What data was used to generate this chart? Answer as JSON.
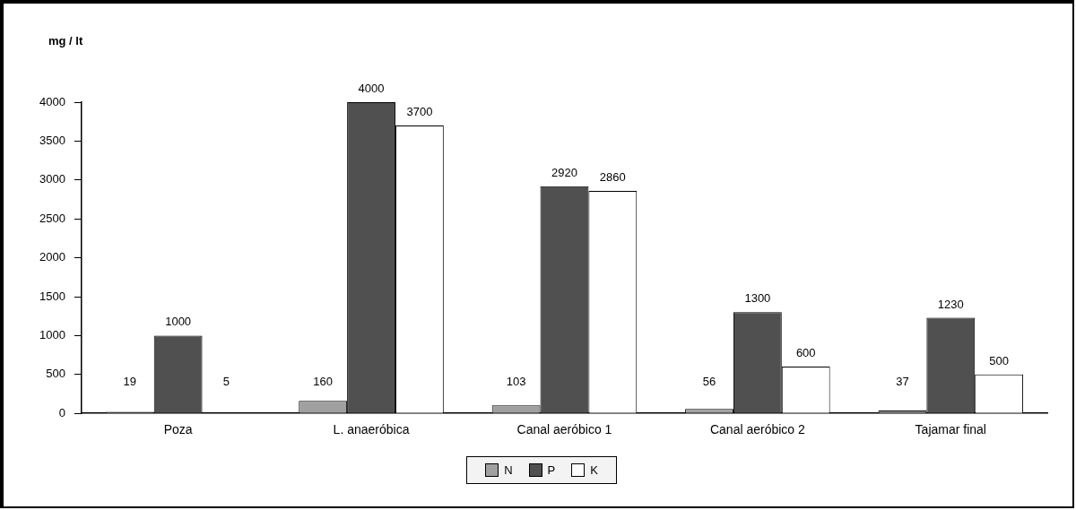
{
  "chart_data": {
    "type": "bar",
    "ylabel": "mg / lt",
    "categories": [
      "Poza",
      "L. anaeróbica",
      "Canal aeróbico 1",
      "Canal aeróbico 2",
      "Tajamar final"
    ],
    "series": [
      {
        "name": "N",
        "color": "#a0a0a0",
        "values": [
          19,
          160,
          103,
          56,
          37
        ]
      },
      {
        "name": "P",
        "color": "#505050",
        "values": [
          1000,
          4000,
          2920,
          1300,
          1230
        ]
      },
      {
        "name": "K",
        "color": "#ffffff",
        "values": [
          5,
          3700,
          2860,
          600,
          500
        ]
      }
    ],
    "ylim": [
      0,
      4000
    ],
    "yticks": [
      0,
      500,
      1000,
      1500,
      2000,
      2500,
      3000,
      3500,
      4000
    ],
    "data_labels": true,
    "legend": "bottom"
  }
}
